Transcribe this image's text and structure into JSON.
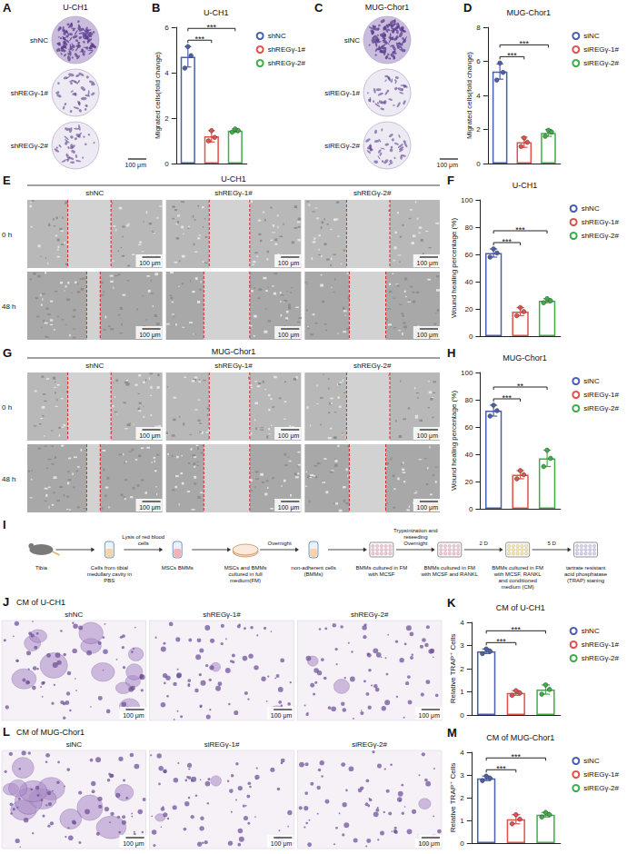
{
  "chart_data": [
    {
      "panel": "B",
      "type": "bar",
      "title": "U-CH1",
      "y_label": "Migrated cells(fold change)",
      "categories": [
        "shNC",
        "shREGγ-1#",
        "shREGγ-2#"
      ],
      "values": [
        4.7,
        1.2,
        1.45
      ],
      "errors": [
        0.45,
        0.25,
        0.08
      ],
      "points": [
        [
          4.2,
          5.15,
          4.75
        ],
        [
          1.0,
          1.45,
          1.15
        ],
        [
          1.38,
          1.52,
          1.45
        ]
      ],
      "colors": [
        "#4b5fb0",
        "#e0524a",
        "#3fae49"
      ],
      "ylim": [
        0,
        6
      ],
      "yticks": [
        0,
        2,
        4,
        6
      ],
      "grid": false,
      "legend": "right",
      "tick_labels": "y",
      "comparisons": [
        {
          "from": "shNC",
          "to": "shREGγ-1#",
          "label": "***"
        },
        {
          "from": "shNC",
          "to": "shREGγ-2#",
          "label": "***"
        }
      ]
    },
    {
      "panel": "D",
      "type": "bar",
      "title": "MUG-Chor1",
      "y_label": "Migrated cells(fold change)",
      "categories": [
        "siNC",
        "siREGγ-1#",
        "siREGγ-2#"
      ],
      "values": [
        5.4,
        1.25,
        1.8
      ],
      "errors": [
        0.45,
        0.3,
        0.2
      ],
      "points": [
        [
          4.9,
          5.9,
          5.35
        ],
        [
          1.0,
          1.5,
          1.25
        ],
        [
          1.6,
          1.95,
          1.85
        ]
      ],
      "colors": [
        "#4b5fb0",
        "#e0524a",
        "#3fae49"
      ],
      "ylim": [
        0,
        8
      ],
      "yticks": [
        0,
        2,
        4,
        6,
        8
      ],
      "grid": false,
      "legend": "right",
      "tick_labels": "y",
      "comparisons": [
        {
          "from": "siNC",
          "to": "siREGγ-1#",
          "label": "***"
        },
        {
          "from": "siNC",
          "to": "siREGγ-2#",
          "label": "***"
        }
      ]
    },
    {
      "panel": "F",
      "type": "bar",
      "title": "U-CH1",
      "y_label": "Wound healing percentage (%)",
      "categories": [
        "shNC",
        "shREGγ-1#",
        "shREGγ-2#"
      ],
      "values": [
        61,
        18,
        26
      ],
      "errors": [
        3,
        3,
        1.5
      ],
      "points": [
        [
          58,
          64,
          61
        ],
        [
          15,
          21,
          18
        ],
        [
          24.5,
          27.5,
          26
        ]
      ],
      "colors": [
        "#4b5fb0",
        "#e0524a",
        "#3fae49"
      ],
      "ylim": [
        0,
        100
      ],
      "yticks": [
        0,
        20,
        40,
        60,
        80,
        100
      ],
      "grid": false,
      "legend": "right",
      "tick_labels": "y",
      "comparisons": [
        {
          "from": "shNC",
          "to": "shREGγ-1#",
          "label": "***"
        },
        {
          "from": "shNC",
          "to": "shREGγ-2#",
          "label": "***"
        }
      ]
    },
    {
      "panel": "H",
      "type": "bar",
      "title": "MUG-Chor1",
      "y_label": "Wound healing percentage (%)",
      "categories": [
        "siNC",
        "siREGγ-1#",
        "siREGγ-2#"
      ],
      "values": [
        72,
        25,
        37
      ],
      "errors": [
        4,
        3,
        6
      ],
      "points": [
        [
          68,
          76,
          72
        ],
        [
          22,
          28,
          25
        ],
        [
          31,
          43,
          37
        ]
      ],
      "colors": [
        "#4b5fb0",
        "#e0524a",
        "#3fae49"
      ],
      "ylim": [
        0,
        100
      ],
      "yticks": [
        0,
        20,
        40,
        60,
        80,
        100
      ],
      "grid": false,
      "legend": "right",
      "tick_labels": "y",
      "comparisons": [
        {
          "from": "siNC",
          "to": "siREGγ-1#",
          "label": "***"
        },
        {
          "from": "siNC",
          "to": "siREGγ-2#",
          "label": "**"
        }
      ]
    },
    {
      "panel": "K",
      "type": "bar",
      "title": "CM of U-CH1",
      "y_label": "Relative TRAP⁺ Cells",
      "categories": [
        "shNC",
        "shREGγ-1#",
        "shREGγ-2#"
      ],
      "values": [
        2.75,
        0.95,
        1.1
      ],
      "errors": [
        0.1,
        0.1,
        0.2
      ],
      "points": [
        [
          2.65,
          2.85,
          2.75
        ],
        [
          0.85,
          1.05,
          0.95
        ],
        [
          0.9,
          1.3,
          1.1
        ]
      ],
      "colors": [
        "#4b5fb0",
        "#e0524a",
        "#3fae49"
      ],
      "ylim": [
        0,
        4
      ],
      "yticks": [
        0,
        1,
        2,
        3,
        4
      ],
      "grid": false,
      "legend": "right",
      "tick_labels": "y",
      "comparisons": [
        {
          "from": "shNC",
          "to": "shREGγ-1#",
          "label": "***"
        },
        {
          "from": "shNC",
          "to": "shREGγ-2#",
          "label": "***"
        }
      ]
    },
    {
      "panel": "M",
      "type": "bar",
      "title": "CM of MUG-Chor1",
      "y_label": "Relative TRAP⁺ Cells",
      "categories": [
        "siNC",
        "siREGγ-1#",
        "siREGγ-2#"
      ],
      "values": [
        2.85,
        1.05,
        1.25
      ],
      "errors": [
        0.1,
        0.2,
        0.1
      ],
      "points": [
        [
          2.75,
          2.95,
          2.85
        ],
        [
          0.85,
          1.25,
          1.05
        ],
        [
          1.15,
          1.35,
          1.25
        ]
      ],
      "colors": [
        "#4b5fb0",
        "#e0524a",
        "#3fae49"
      ],
      "ylim": [
        0,
        4
      ],
      "yticks": [
        0,
        1,
        2,
        3,
        4
      ],
      "grid": false,
      "legend": "right",
      "tick_labels": "y",
      "comparisons": [
        {
          "from": "siNC",
          "to": "siREGγ-1#",
          "label": "***"
        },
        {
          "from": "siNC",
          "to": "siREGγ-2#",
          "label": "***"
        }
      ]
    }
  ],
  "image_panels": [
    {
      "panel": "A",
      "kind": "transwell",
      "title": "U-CH1",
      "rows": [
        "shNC",
        "shREGγ-1#",
        "shREGγ-2#"
      ],
      "scale_bar": "100 μm"
    },
    {
      "panel": "C",
      "kind": "transwell",
      "title": "MUG-Chor1",
      "rows": [
        "siNC",
        "siREGγ-1#",
        "siREGγ-2#"
      ],
      "scale_bar": "100 μm"
    },
    {
      "panel": "E",
      "kind": "wound",
      "title": "U-CH1",
      "columns": [
        "shNC",
        "shREGγ-1#",
        "shREGγ-2#"
      ],
      "rows": [
        "0 h",
        "48 h"
      ],
      "scale_bar": "100 μm"
    },
    {
      "panel": "G",
      "kind": "wound",
      "title": "MUG-Chor1",
      "columns": [
        "shNC",
        "shREGγ-1#",
        "shREGγ-2#"
      ],
      "rows": [
        "0 h",
        "48 h"
      ],
      "scale_bar": "100 μm"
    },
    {
      "panel": "J",
      "kind": "trap",
      "title": "CM of U-CH1",
      "columns": [
        "shNC",
        "shREGγ-1#",
        "shREGγ-2#"
      ],
      "scale_bar": "100 μm"
    },
    {
      "panel": "L",
      "kind": "trap",
      "title": "CM of MUG-Chor1",
      "columns": [
        "siNC",
        "siREGγ-1#",
        "siREGγ-2#"
      ],
      "scale_bar": "100 μm"
    }
  ],
  "schematic": {
    "panel": "I",
    "steps": [
      {
        "label": "Tibia"
      },
      {
        "label": "Cells from tibial medullary cavity in PBS"
      },
      {
        "label": "MSCs BMMs",
        "arrow_labels": [
          "Lysis of red blood cells"
        ]
      },
      {
        "label": "MSCs and BMMs cultured in full medium(FM)"
      },
      {
        "label": "non-adherent cells (BMMs)",
        "arrow_labels": [
          "Overnight"
        ]
      },
      {
        "label": "BMMs cultured in FM with MCSF"
      },
      {
        "label": "BMMs cultured in FM with MCSF and RANKL",
        "arrow_labels": [
          "Trypsinization and reseeding",
          "Overnight"
        ]
      },
      {
        "label": "BMMs cultured in FM with MCSF, RANKL and conditioned medium (CM)",
        "arrow_labels": [
          "2 D"
        ]
      },
      {
        "label": "tartrate resistant acid phosphatase (TRAP) staning",
        "arrow_labels": [
          "5 D"
        ]
      }
    ]
  }
}
